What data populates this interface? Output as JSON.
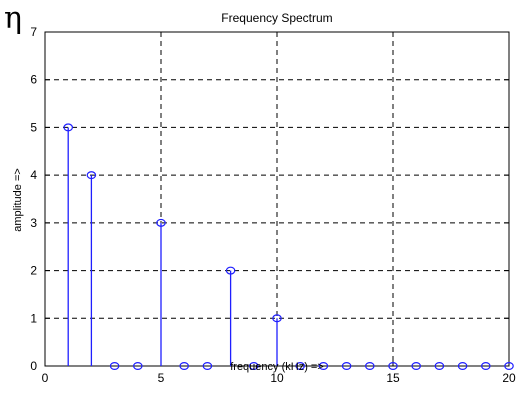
{
  "page_symbol": "η",
  "chart_data": {
    "type": "stem",
    "title": "Frequency Spectrum",
    "xlabel": "frequency (kHz) =>",
    "ylabel": "amplitude =>",
    "xlim": [
      0,
      20
    ],
    "ylim": [
      0,
      7
    ],
    "xticks": [
      0,
      5,
      10,
      15,
      20
    ],
    "yticks": [
      0,
      1,
      2,
      3,
      4,
      5,
      6,
      7
    ],
    "grid": true,
    "color": "#1f1fff",
    "x": [
      1,
      2,
      3,
      4,
      5,
      6,
      7,
      8,
      9,
      10,
      11,
      12,
      13,
      14,
      15,
      16,
      17,
      18,
      19,
      20
    ],
    "y": [
      5,
      4,
      0,
      0,
      3,
      0,
      0,
      2,
      0,
      1,
      0,
      0,
      0,
      0,
      0,
      0,
      0,
      0,
      0,
      0
    ]
  }
}
